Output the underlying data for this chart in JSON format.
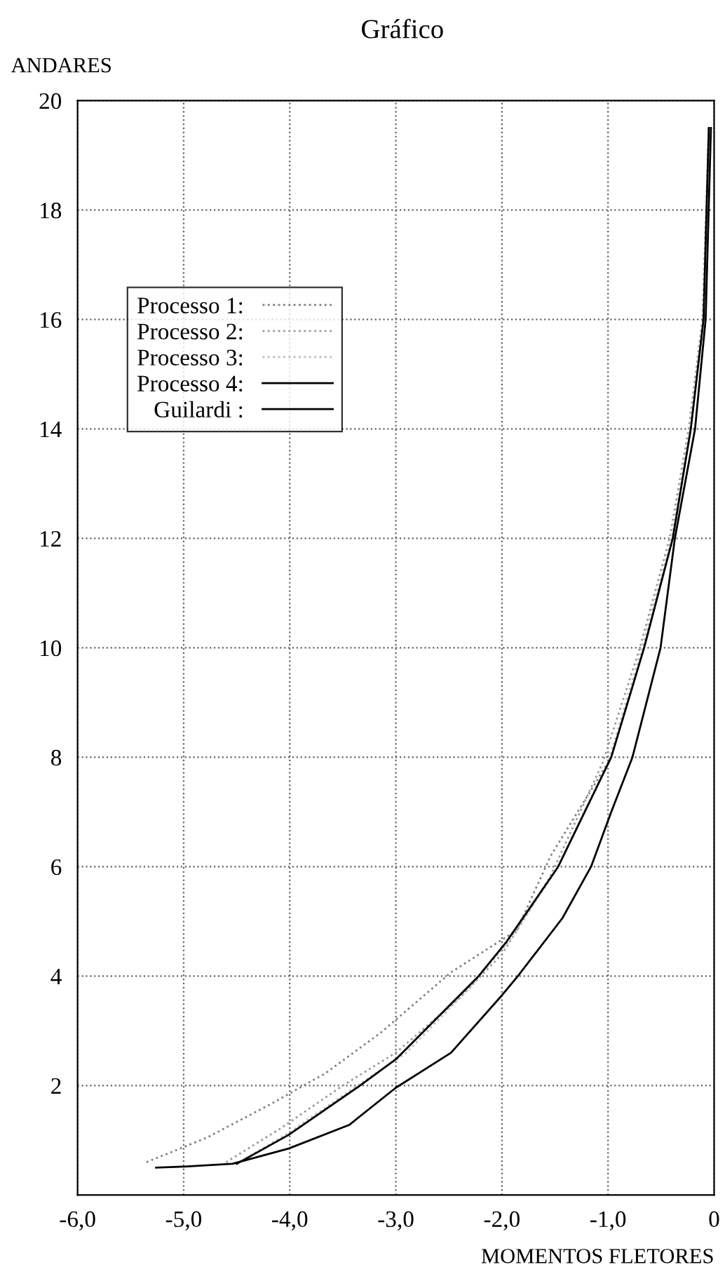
{
  "chart_data": {
    "type": "line",
    "title": "Gráfico",
    "xlabel": "MOMENTOS FLETORES",
    "ylabel": "ANDARES",
    "xlim": [
      -6,
      0
    ],
    "ylim": [
      0,
      20
    ],
    "xticks": [
      {
        "value": -6,
        "label": "-6,0"
      },
      {
        "value": -5,
        "label": "-5,0"
      },
      {
        "value": -4,
        "label": "-4,0"
      },
      {
        "value": -3,
        "label": "-3,0"
      },
      {
        "value": -2,
        "label": "-2,0"
      },
      {
        "value": -1,
        "label": "-1,0"
      },
      0
    ],
    "yticks": [
      2,
      4,
      6,
      8,
      10,
      12,
      14,
      16,
      18,
      20
    ],
    "grid": true,
    "legend": "top left",
    "marker": "none",
    "series": [
      {
        "name": "Processo 1:",
        "color": "#808080",
        "line_style": "dotted",
        "x": [
          -5.35,
          -4.78,
          -4.19,
          -3.66,
          -3.14,
          -2.48,
          -1.86,
          -1.54,
          -1.35,
          -0.97,
          -0.66,
          -0.39,
          -0.22,
          -0.1,
          -0.05
        ],
        "values": [
          0.6,
          1.05,
          1.65,
          2.23,
          2.97,
          4.07,
          4.84,
          6.2,
          6.8,
          8.0,
          10.0,
          12.0,
          14.0,
          16.0,
          19.5
        ]
      },
      {
        "name": "Processo 2:",
        "color": "#999999",
        "line_style": "dotted",
        "x": [
          -4.6,
          -4.1,
          -3.5,
          -3.0,
          -2.4,
          -2.0,
          -1.55,
          -1.05,
          -0.7,
          -0.42,
          -0.24,
          -0.11,
          -0.05
        ],
        "values": [
          0.6,
          1.2,
          2.0,
          2.6,
          3.6,
          4.4,
          5.8,
          7.9,
          10.0,
          12.0,
          14.0,
          16.0,
          19.5
        ]
      },
      {
        "name": "Processo 3:",
        "color": "#bbbbbb",
        "line_style": "dotted",
        "x": [
          -4.5,
          -4.0,
          -3.4,
          -2.9,
          -2.3,
          -1.95,
          -1.5,
          -1.0,
          -0.68,
          -0.4,
          -0.23,
          -0.1,
          -0.05
        ],
        "values": [
          0.57,
          1.15,
          1.95,
          2.6,
          3.8,
          4.6,
          5.9,
          7.9,
          10.0,
          12.0,
          14.0,
          16.0,
          19.5
        ]
      },
      {
        "name": "Processo 4:",
        "color": "#000000",
        "line_style": "solid",
        "x": [
          -4.5,
          -4.01,
          -3.36,
          -3.0,
          -2.22,
          -1.96,
          -1.47,
          -0.97,
          -0.66,
          -0.39,
          -0.22,
          -0.1,
          -0.05
        ],
        "values": [
          0.57,
          1.1,
          1.97,
          2.48,
          4.0,
          4.62,
          6.0,
          8.0,
          10.0,
          12.0,
          14.0,
          16.0,
          19.5
        ]
      },
      {
        "name": "Guilardi :",
        "color": "#000000",
        "line_style": "solid",
        "x": [
          -5.26,
          -4.99,
          -4.54,
          -4.01,
          -3.44,
          -3.0,
          -2.48,
          -2.0,
          -1.85,
          -1.43,
          -1.16,
          -0.97,
          -0.77,
          -0.505,
          -0.37,
          -0.18,
          -0.08,
          -0.03
        ],
        "values": [
          0.5,
          0.52,
          0.57,
          0.85,
          1.28,
          1.96,
          2.6,
          3.65,
          4.0,
          5.06,
          6.0,
          7.0,
          8.0,
          10.0,
          12.0,
          14.0,
          16.0,
          19.5
        ]
      }
    ]
  }
}
